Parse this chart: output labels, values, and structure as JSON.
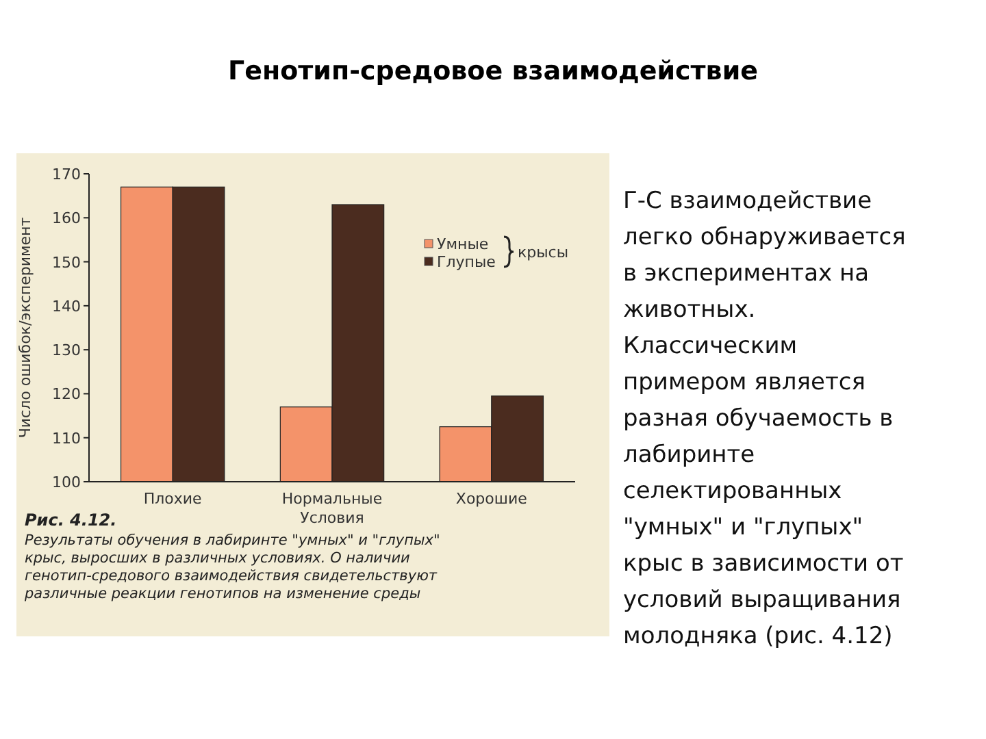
{
  "chart_data": {
    "type": "bar",
    "title": "Генотип-средовое взаимодействие",
    "ylabel": "Число ошибок/эксперимент",
    "xlabel": "Условия",
    "legend_title": "крысы",
    "categories": [
      "Плохие",
      "Нормальные",
      "Хорошие"
    ],
    "series": [
      {
        "name": "Умные",
        "color": "#f4936a",
        "values": [
          167,
          117,
          112.5
        ]
      },
      {
        "name": "Глупые",
        "color": "#4b2c1f",
        "values": [
          167,
          163,
          119.5
        ]
      }
    ],
    "ylim": [
      100,
      170
    ],
    "yticks": [
      100,
      110,
      120,
      130,
      140,
      150,
      160,
      170
    ],
    "grid": false,
    "legend": "top right",
    "annotations": [
      "Рис. 4.12.",
      "Результаты обучения в лабиринте \"умных\" и \"глупых\"\nкрыс, выросших в различных условиях. О наличии\nгенотип-средового взаимодействия свидетельствуют\nразличные реакции генотипов на изменение среды",
      "Г-С взаимодействие\nлегко обнаруживается\nв экспериментах на\nживотных.\nКлассическим\nпримером является\nразная обучаемость в\nлабиринте\nселектированных\n\"умных\" и \"глупых\"\nкрыс в зависимости от\nусловий выращивания\nмолодняка (рис. 4.12)"
    ]
  }
}
